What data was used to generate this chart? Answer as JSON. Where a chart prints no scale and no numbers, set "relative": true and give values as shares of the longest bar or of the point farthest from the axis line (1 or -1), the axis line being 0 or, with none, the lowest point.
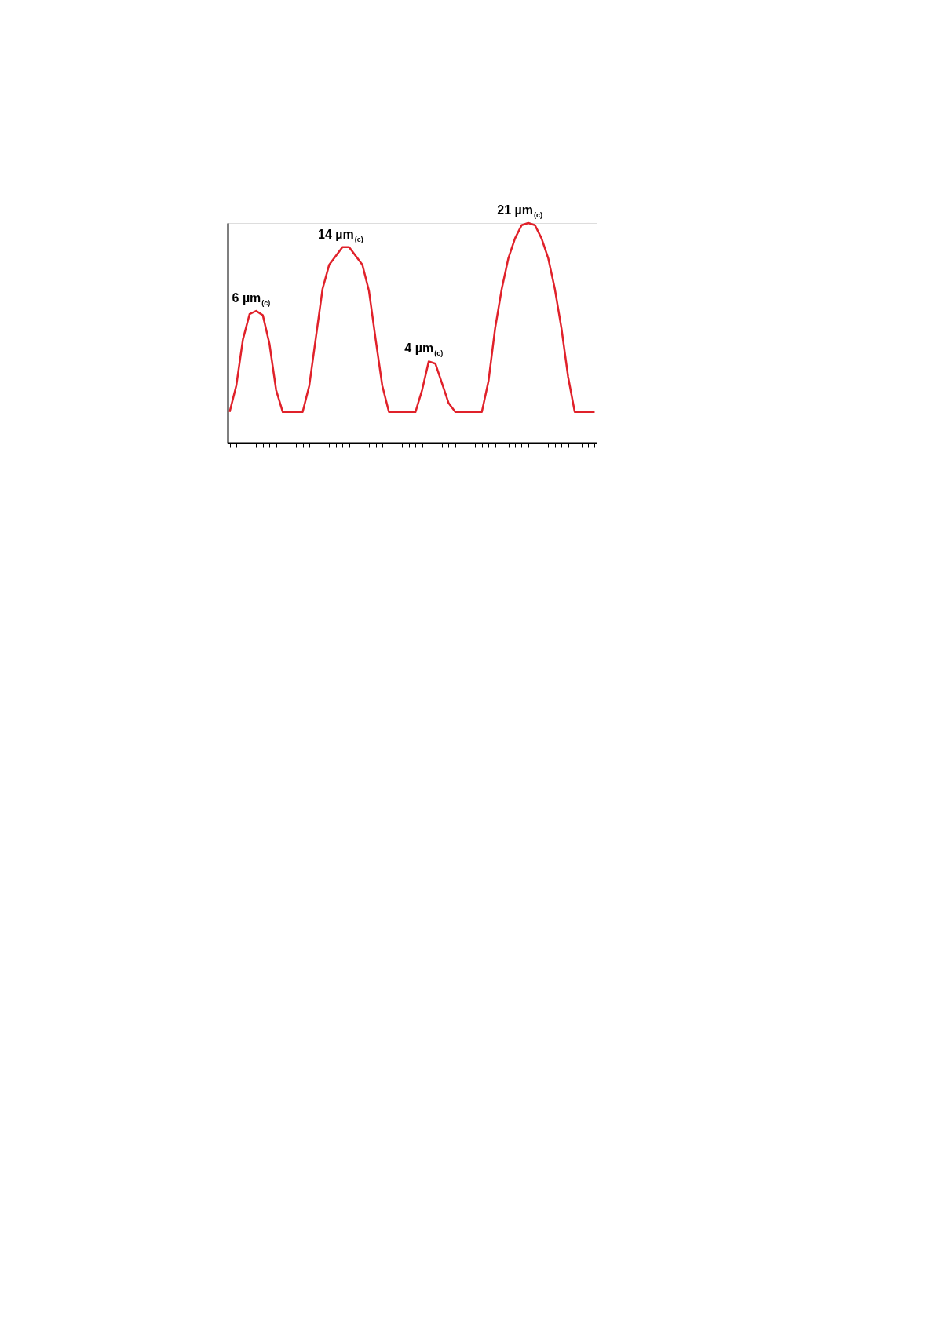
{
  "chart_data": {
    "type": "line",
    "relative": true,
    "categories": [
      null,
      null,
      null,
      null,
      null,
      null,
      null,
      null,
      null,
      null,
      null,
      null,
      null,
      null,
      null,
      null,
      null,
      null,
      null,
      null,
      null,
      null,
      null,
      null,
      null,
      null,
      null,
      null,
      null,
      null,
      null,
      null,
      null,
      null,
      null,
      null,
      null,
      null,
      null,
      null,
      null,
      null,
      null,
      null,
      null,
      null,
      null,
      null,
      null,
      null,
      null,
      null,
      null,
      null,
      null,
      null
    ],
    "series": [
      {
        "color": "#e0212a",
        "values": [
          0.14,
          0.26,
          0.47,
          0.585,
          0.6,
          0.58,
          0.45,
          0.24,
          0.14,
          0.14,
          0.14,
          0.14,
          0.26,
          0.48,
          0.7,
          0.81,
          0.85,
          0.89,
          0.89,
          0.85,
          0.81,
          0.69,
          0.47,
          0.26,
          0.14,
          0.14,
          0.14,
          0.14,
          0.14,
          0.24,
          0.37,
          0.36,
          0.27,
          0.18,
          0.14,
          0.14,
          0.14,
          0.14,
          0.14,
          0.28,
          0.52,
          0.7,
          0.84,
          0.93,
          0.99,
          1.0,
          0.99,
          0.93,
          0.84,
          0.7,
          0.52,
          0.3,
          0.14,
          0.14,
          0.14,
          0.14
        ]
      }
    ],
    "annotations": [
      "6 µm$_{(c)}$",
      "14 µm$_{(c)}$",
      "4 µm$_{(c)}$",
      "21 µm$_{(c)}$"
    ],
    "marker": "none",
    "line_style": "solid"
  }
}
